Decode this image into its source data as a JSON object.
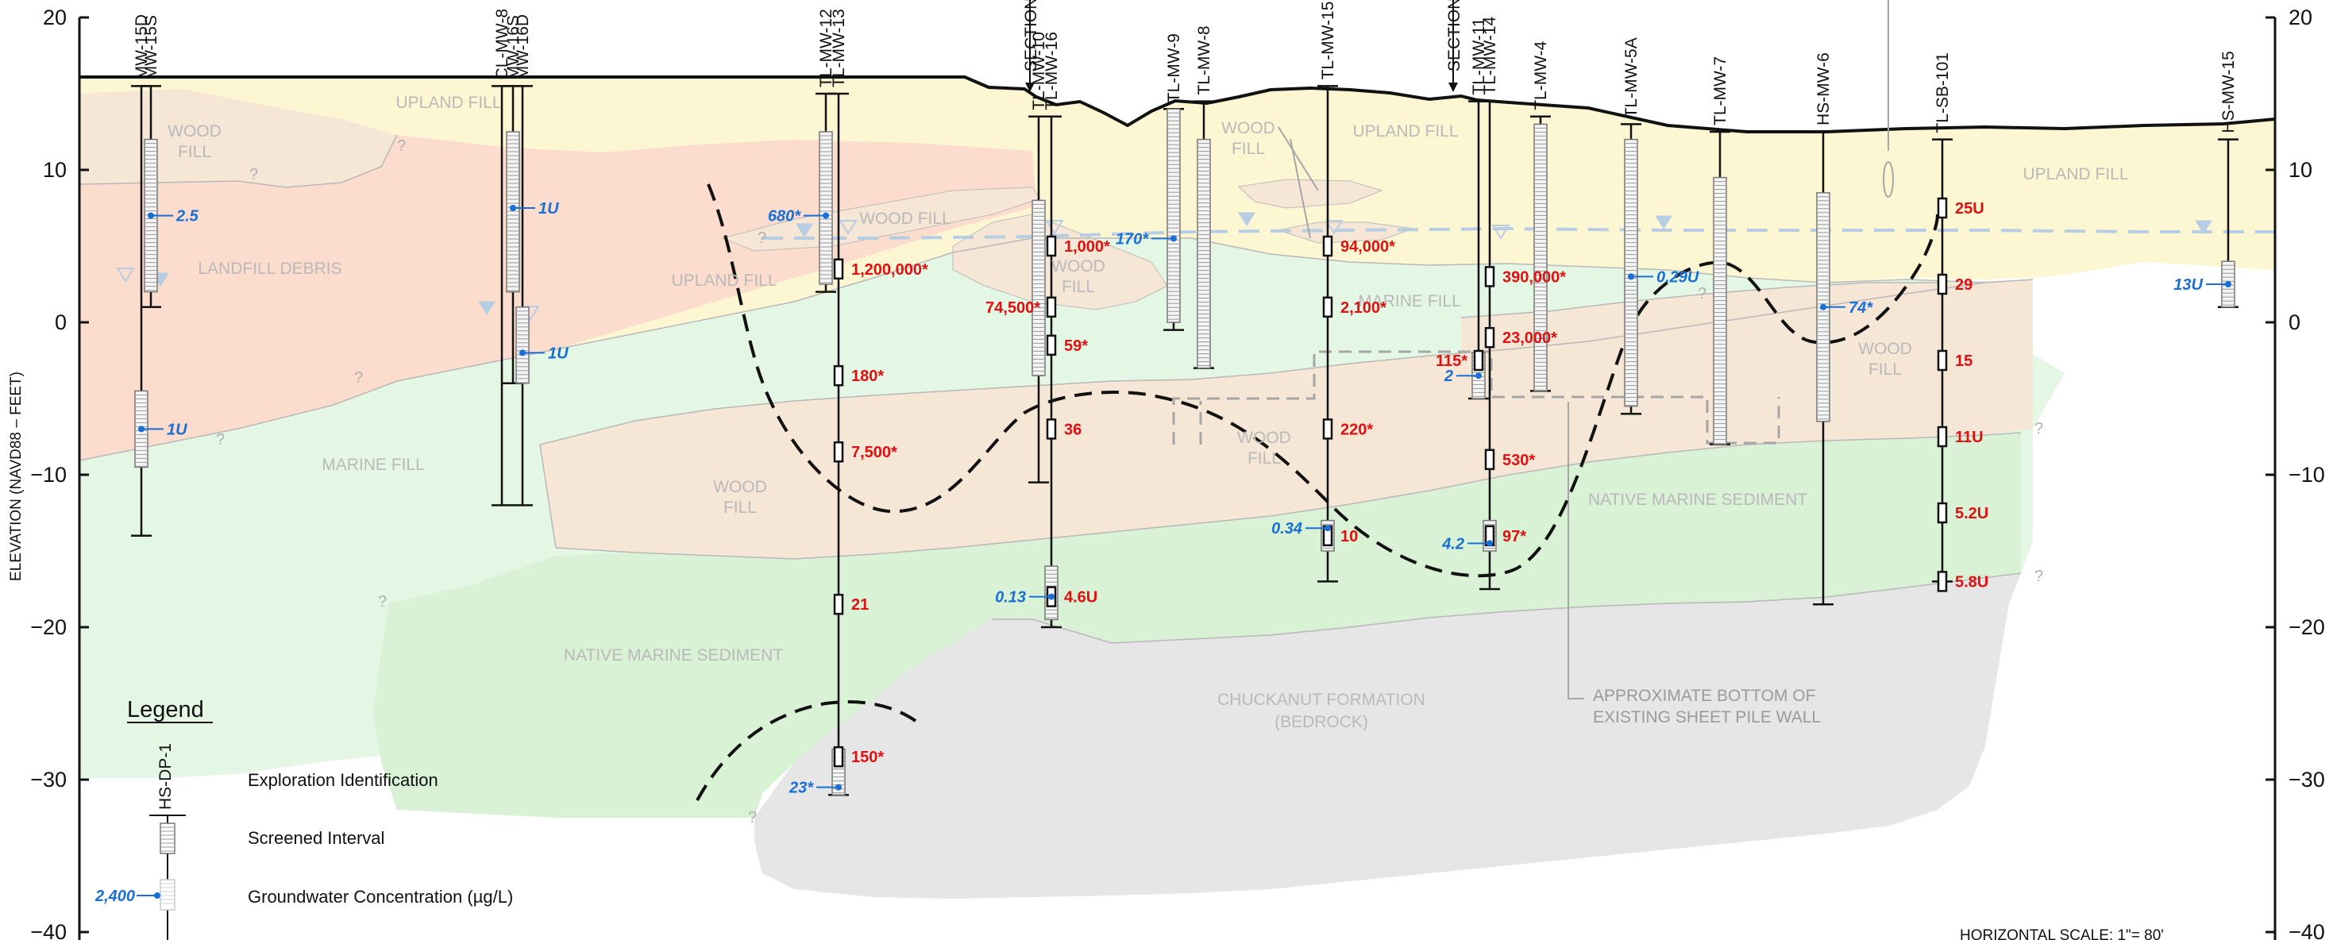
{
  "axis": {
    "ylabel": "ELEVATION  (NAVD88  –  FEET)",
    "ticks": [
      20,
      10,
      0,
      -10,
      -20,
      -30,
      -40
    ],
    "ylim": [
      -40,
      20
    ]
  },
  "wells": [
    {
      "label": "MW-15D",
      "elev_top": 15.5,
      "elev_bottom": -14
    },
    {
      "label": "MW-15S",
      "elev_top": 15.5,
      "elev_bottom": 1
    },
    {
      "label": "CL-MW-8",
      "elev_top": 15.5,
      "elev_bottom": -12
    },
    {
      "label": "MW-16S",
      "elev_top": 15.5,
      "elev_bottom": -4
    },
    {
      "label": "MW-16D",
      "elev_top": 15.5,
      "elev_bottom": -12
    },
    {
      "label": "TL-MW-12",
      "elev_top": 15,
      "elev_bottom": 2
    },
    {
      "label": "TL-MW-13",
      "elev_top": 15,
      "elev_bottom": -31
    },
    {
      "label": "TL-MW-10",
      "elev_top": 13.5,
      "elev_bottom": -10.5
    },
    {
      "label": "TL-MW-16",
      "elev_top": 13.5,
      "elev_bottom": -20
    },
    {
      "label": "TL-MW-9",
      "elev_top": 14,
      "elev_bottom": -0.5
    },
    {
      "label": "TL-MW-8",
      "elev_top": 14.5,
      "elev_bottom": -3
    },
    {
      "label": "TL-MW-15",
      "elev_top": 15.5,
      "elev_bottom": -17
    },
    {
      "label": "TL-MW-11",
      "elev_top": 14.5,
      "elev_bottom": -5
    },
    {
      "label": "TL-MW-14",
      "elev_top": 14.5,
      "elev_bottom": -17.5
    },
    {
      "label": "TL-MW-4",
      "elev_top": 13.5,
      "elev_bottom": -4.5
    },
    {
      "label": "TL-MW-5A",
      "elev_top": 13,
      "elev_bottom": -6
    },
    {
      "label": "TL-MW-7",
      "elev_top": 12.5,
      "elev_bottom": -8
    },
    {
      "label": "HS-MW-6",
      "elev_top": 12.5,
      "elev_bottom": -18.5
    },
    {
      "label": "TL-SB-101",
      "elev_top": 12,
      "elev_bottom": -17
    },
    {
      "label": "HS-MW-15",
      "elev_top": 12,
      "elev_bottom": 1
    }
  ],
  "section_markers": [
    "SECTION",
    "SECTION"
  ],
  "units": {
    "wood_fill": "WOOD FILL",
    "upland_fill": "UPLAND FILL",
    "landfill_debris": "LANDFILL DEBRIS",
    "marine_fill": "MARINE FILL",
    "native_marine_sediment": "NATIVE MARINE SEDIMENT",
    "bedrock_1": "CHUCKANUT FORMATION",
    "bedrock_2": "(BEDROCK)",
    "wood_fill_1": "WOOD",
    "wood_fill_2": "FILL"
  },
  "sample_values": [
    {
      "well": "TL-MW-13",
      "elev": 3.5,
      "value": "1,200,000*"
    },
    {
      "well": "TL-MW-13",
      "elev": -3.5,
      "value": "180*"
    },
    {
      "well": "TL-MW-13",
      "elev": -8.5,
      "value": "7,500*"
    },
    {
      "well": "TL-MW-13",
      "elev": -18.5,
      "value": "21"
    },
    {
      "well": "TL-MW-13",
      "elev": -28.5,
      "value": "150*"
    },
    {
      "well": "TL-MW-16",
      "elev": 5,
      "value": "1,000*"
    },
    {
      "well": "TL-MW-16",
      "elev": 1,
      "value": "74,500*"
    },
    {
      "well": "TL-MW-16",
      "elev": -1.5,
      "value": "59*"
    },
    {
      "well": "TL-MW-16",
      "elev": -7,
      "value": "36"
    },
    {
      "well": "TL-MW-16",
      "elev": -18,
      "value": "4.6U"
    },
    {
      "well": "TL-MW-15",
      "elev": 5,
      "value": "94,000*"
    },
    {
      "well": "TL-MW-15",
      "elev": 1,
      "value": "2,100*"
    },
    {
      "well": "TL-MW-15",
      "elev": -7,
      "value": "220*"
    },
    {
      "well": "TL-MW-15",
      "elev": -14,
      "value": "10"
    },
    {
      "well": "TL-MW-14",
      "elev": 3,
      "value": "390,000*"
    },
    {
      "well": "TL-MW-14",
      "elev": -1,
      "value": "23,000*"
    },
    {
      "well": "TL-MW-11",
      "elev": -2.5,
      "value": "115*"
    },
    {
      "well": "TL-MW-14",
      "elev": -9,
      "value": "530*"
    },
    {
      "well": "TL-MW-14",
      "elev": -14,
      "value": "97*"
    },
    {
      "well": "TL-SB-101",
      "elev": 7.5,
      "value": "25U"
    },
    {
      "well": "TL-SB-101",
      "elev": 2.5,
      "value": "29"
    },
    {
      "well": "TL-SB-101",
      "elev": -2.5,
      "value": "15"
    },
    {
      "well": "TL-SB-101",
      "elev": -7.5,
      "value": "11U"
    },
    {
      "well": "TL-SB-101",
      "elev": -12.5,
      "value": "5.2U"
    },
    {
      "well": "TL-SB-101",
      "elev": -17,
      "value": "5.8U"
    }
  ],
  "groundwater_values": [
    {
      "well": "MW-15S",
      "elev": 7,
      "value": "2.5"
    },
    {
      "well": "MW-15D",
      "elev": -7,
      "value": "1U"
    },
    {
      "well": "MW-16S",
      "elev": 7.5,
      "value": "1U"
    },
    {
      "well": "MW-16D",
      "elev": -2,
      "value": "1U"
    },
    {
      "well": "TL-MW-12",
      "elev": 7,
      "value": "680*"
    },
    {
      "well": "TL-MW-13",
      "elev": -30.5,
      "value": "23*"
    },
    {
      "well": "TL-MW-9",
      "elev": 5.5,
      "value": "170*"
    },
    {
      "well": "TL-MW-16",
      "elev": -18,
      "value": "0.13"
    },
    {
      "well": "TL-MW-15",
      "elev": -13.5,
      "value": "0.34"
    },
    {
      "well": "TL-MW-11",
      "elev": -3.5,
      "value": "2"
    },
    {
      "well": "TL-MW-14",
      "elev": -14.5,
      "value": "4.2"
    },
    {
      "well": "TL-MW-5A",
      "elev": 3,
      "value": "0.29U"
    },
    {
      "well": "HS-MW-6",
      "elev": 1,
      "value": "74*"
    },
    {
      "well": "HS-MW-15",
      "elev": 2.5,
      "value": "13U"
    }
  ],
  "notes": {
    "sheet_pile_1": "APPROXIMATE BOTTOM OF",
    "sheet_pile_2": "EXISTING SHEET PILE WALL"
  },
  "legend": {
    "title": "Legend",
    "exploration_id_sample": "HS-DP-1",
    "exploration_id": "Exploration Identification",
    "screened_interval": "Screened Interval",
    "gw_sample_value": "2,400",
    "groundwater_concentration": "Groundwater Concentration (µg/L)"
  },
  "scale": "HORIZONTAL SCALE: 1\"= 80'",
  "colors": {
    "upland_fill": "#fdf6d3",
    "landfill_debris": "#fbdccd",
    "marine_fill": "#e4f6e4",
    "wood_fill": "#f6e6d6",
    "native_marine_sediment": "#d9f2d5",
    "bedrock": "#e6e6e6",
    "sample_red": "#e01010",
    "groundwater_blue": "#1a6fd6"
  }
}
